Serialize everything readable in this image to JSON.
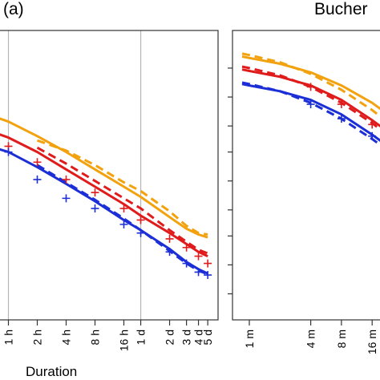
{
  "figure": {
    "panel_label": "(a)",
    "panel_title": "Bucher"
  },
  "colors": {
    "orange": "#f2a20f",
    "red": "#e01b1b",
    "blue": "#1c2fd6",
    "gridline": "#b5b5b5",
    "axis": "#333333"
  },
  "chart_data": [
    {
      "type": "line",
      "panel": "left",
      "title": "",
      "xlabel": "Duration",
      "ylabel": "",
      "x_scale": "log",
      "x_unit": "hours",
      "x_ticks": [
        {
          "label": "1h",
          "hours": 1
        },
        {
          "label": "2h",
          "hours": 2
        },
        {
          "label": "4h",
          "hours": 4
        },
        {
          "label": "8h",
          "hours": 8
        },
        {
          "label": "16h",
          "hours": 16
        },
        {
          "label": "1d",
          "hours": 24
        },
        {
          "label": "2d",
          "hours": 48
        },
        {
          "label": "3d",
          "hours": 72
        },
        {
          "label": "4d",
          "hours": 96
        },
        {
          "label": "5d",
          "hours": 120
        }
      ],
      "vlines_hours": [
        1,
        24
      ],
      "y_range": [
        0,
        10
      ],
      "y_ticks": [],
      "grid": false,
      "series": [
        {
          "color": "orange",
          "style": "solid",
          "x": [
            0.5,
            1,
            2,
            4,
            8,
            16,
            24,
            48,
            72,
            96,
            120
          ],
          "y": [
            7.2,
            6.85,
            6.35,
            5.8,
            5.2,
            4.6,
            4.25,
            3.55,
            3.15,
            2.95,
            2.85
          ]
        },
        {
          "color": "orange",
          "style": "dashed",
          "x": [
            2,
            4,
            8,
            16,
            24,
            48,
            72,
            96,
            120
          ],
          "y": [
            6.2,
            5.85,
            5.35,
            4.75,
            4.45,
            3.75,
            3.25,
            3.0,
            2.95
          ]
        },
        {
          "color": "red",
          "style": "solid",
          "x": [
            0.5,
            1,
            2,
            4,
            8,
            16,
            24,
            48,
            72,
            96,
            120
          ],
          "y": [
            6.65,
            6.3,
            5.8,
            5.2,
            4.6,
            4.0,
            3.6,
            3.0,
            2.62,
            2.35,
            2.2
          ]
        },
        {
          "color": "red",
          "style": "dashed",
          "x": [
            2,
            4,
            8,
            16,
            24,
            48,
            72,
            96,
            120
          ],
          "y": [
            5.95,
            5.4,
            4.8,
            4.2,
            3.85,
            3.1,
            2.7,
            2.42,
            2.3
          ]
        },
        {
          "color": "blue",
          "style": "solid",
          "x": [
            0.5,
            1,
            2,
            4,
            8,
            16,
            24,
            48,
            72,
            96,
            120
          ],
          "y": [
            6.1,
            5.8,
            5.28,
            4.7,
            4.1,
            3.45,
            3.1,
            2.45,
            2.0,
            1.75,
            1.6
          ]
        },
        {
          "color": "blue",
          "style": "dashed",
          "x": [
            2,
            4,
            8,
            16,
            24,
            48,
            72,
            96,
            120
          ],
          "y": [
            5.35,
            4.75,
            4.15,
            3.5,
            3.1,
            2.38,
            1.95,
            1.7,
            1.58
          ]
        },
        {
          "color": "red",
          "style": "points",
          "marker": "+",
          "x": [
            1,
            2,
            4,
            8,
            16,
            24,
            48,
            72,
            96,
            120
          ],
          "y": [
            6.0,
            5.45,
            4.85,
            4.4,
            3.85,
            3.45,
            2.8,
            2.5,
            2.2,
            1.95
          ]
        },
        {
          "color": "blue",
          "style": "points",
          "marker": "+",
          "x": [
            1,
            2,
            4,
            8,
            16,
            24,
            48,
            72,
            96,
            120
          ],
          "y": [
            5.8,
            4.85,
            4.2,
            3.85,
            3.3,
            3.0,
            2.35,
            1.95,
            1.65,
            1.55
          ]
        }
      ]
    },
    {
      "type": "line",
      "panel": "right",
      "title": "",
      "xlabel": "",
      "ylabel": "",
      "x_scale": "log",
      "x_unit": "minutes",
      "x_ticks": [
        {
          "label": "1m",
          "minutes": 1
        },
        {
          "label": "4m",
          "minutes": 4
        },
        {
          "label": "8m",
          "minutes": 8
        },
        {
          "label": "16m",
          "minutes": 16
        }
      ],
      "y_range": [
        0,
        10
      ],
      "y_ticks": [
        0.9,
        1.9,
        2.9,
        3.8,
        4.8,
        5.8,
        6.7,
        7.7,
        8.7
      ],
      "grid": false,
      "series": [
        {
          "color": "orange",
          "style": "solid",
          "x": [
            0.85,
            1,
            2,
            4,
            8,
            16,
            30
          ],
          "y": [
            9.1,
            9.05,
            8.85,
            8.55,
            8.1,
            7.5,
            6.8
          ]
        },
        {
          "color": "orange",
          "style": "dashed",
          "x": [
            0.85,
            1,
            2,
            4,
            8,
            16,
            30
          ],
          "y": [
            9.2,
            9.15,
            8.9,
            8.5,
            7.95,
            7.25,
            6.5
          ]
        },
        {
          "color": "red",
          "style": "solid",
          "x": [
            0.85,
            1,
            2,
            4,
            8,
            16,
            30
          ],
          "y": [
            8.65,
            8.6,
            8.4,
            8.1,
            7.6,
            6.9,
            6.2
          ]
        },
        {
          "color": "red",
          "style": "dashed",
          "x": [
            0.85,
            1,
            2,
            4,
            8,
            16,
            30
          ],
          "y": [
            8.75,
            8.7,
            8.45,
            8.05,
            7.5,
            6.8,
            6.05
          ]
        },
        {
          "color": "blue",
          "style": "solid",
          "x": [
            0.85,
            1,
            2,
            4,
            8,
            16,
            30
          ],
          "y": [
            8.15,
            8.1,
            7.9,
            7.6,
            7.1,
            6.4,
            5.7
          ]
        },
        {
          "color": "blue",
          "style": "dashed",
          "x": [
            0.85,
            1,
            2,
            4,
            8,
            16,
            30
          ],
          "y": [
            8.2,
            8.15,
            7.9,
            7.5,
            6.95,
            6.25,
            5.55
          ]
        },
        {
          "color": "red",
          "style": "points",
          "marker": "+",
          "x": [
            4,
            8,
            16
          ],
          "y": [
            8.05,
            7.45,
            6.75
          ]
        },
        {
          "color": "blue",
          "style": "points",
          "marker": "+",
          "x": [
            4,
            8,
            16
          ],
          "y": [
            7.45,
            6.95,
            6.35
          ]
        }
      ]
    }
  ]
}
